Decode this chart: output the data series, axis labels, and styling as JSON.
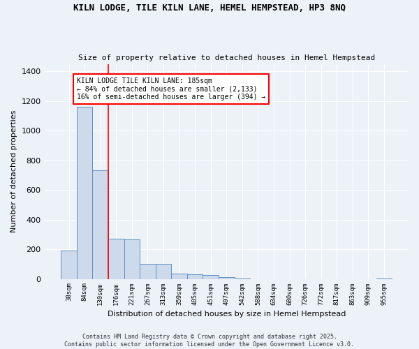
{
  "title_line1": "KILN LODGE, TILE KILN LANE, HEMEL HEMPSTEAD, HP3 8NQ",
  "title_line2": "Size of property relative to detached houses in Hemel Hempstead",
  "xlabel": "Distribution of detached houses by size in Hemel Hempstead",
  "ylabel": "Number of detached properties",
  "bin_labels": [
    "38sqm",
    "84sqm",
    "130sqm",
    "176sqm",
    "221sqm",
    "267sqm",
    "313sqm",
    "359sqm",
    "405sqm",
    "451sqm",
    "497sqm",
    "542sqm",
    "588sqm",
    "634sqm",
    "680sqm",
    "726sqm",
    "772sqm",
    "817sqm",
    "863sqm",
    "909sqm",
    "955sqm"
  ],
  "bar_heights": [
    193,
    1160,
    730,
    270,
    265,
    103,
    103,
    35,
    32,
    25,
    10,
    3,
    0,
    0,
    0,
    0,
    0,
    0,
    0,
    0,
    3
  ],
  "bar_color": "#ccdaec",
  "bar_edge_color": "#6090c0",
  "red_line_x": 3.0,
  "annotation_text": "KILN LODGE TILE KILN LANE: 185sqm\n← 84% of detached houses are smaller (2,133)\n16% of semi-detached houses are larger (394) →",
  "annotation_box_color": "white",
  "annotation_box_edge": "red",
  "ylim": [
    0,
    1450
  ],
  "yticks": [
    0,
    200,
    400,
    600,
    800,
    1000,
    1200,
    1400
  ],
  "background_color": "#edf2f9",
  "grid_color": "#ffffff",
  "footer_line1": "Contains HM Land Registry data © Crown copyright and database right 2025.",
  "footer_line2": "Contains public sector information licensed under the Open Government Licence v3.0."
}
